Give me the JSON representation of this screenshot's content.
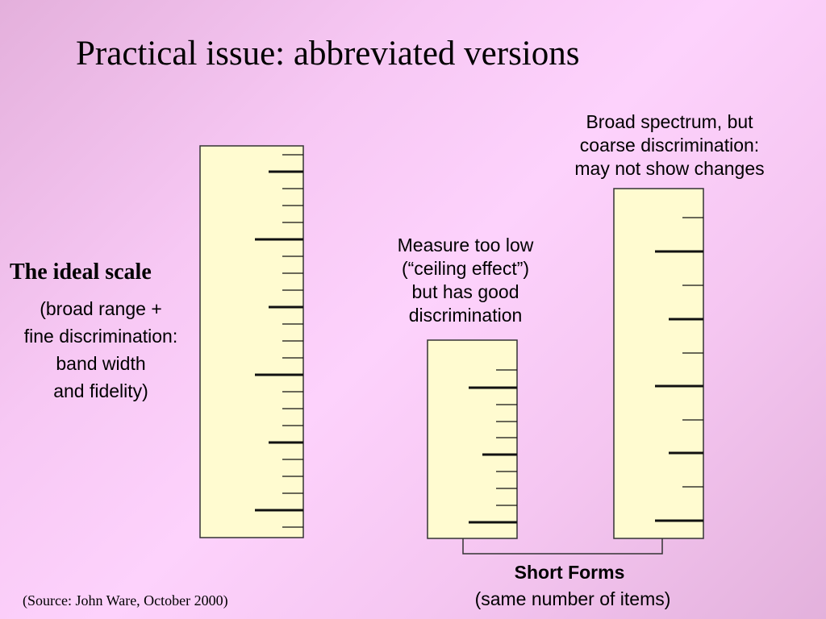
{
  "title": "Practical issue: abbreviated versions",
  "ideal": {
    "heading": "The ideal scale",
    "description_lines": [
      "(broad range +",
      "fine discrimination:",
      "band width",
      "and fidelity)"
    ]
  },
  "short_low": {
    "note_lines": [
      "Measure too low",
      "(“ceiling effect”)",
      "but has good",
      "discrimination"
    ]
  },
  "short_broad": {
    "note_lines": [
      "Broad spectrum, but",
      "coarse discrimination:",
      "may not show changes"
    ]
  },
  "short_forms": {
    "title": "Short Forms",
    "subtitle": "(same number of items)"
  },
  "source": "(Source: John Ware, October 2000)",
  "colors": {
    "scale_fill": "#fffbd0",
    "scale_stroke": "#333333",
    "tick": "#111111",
    "background": "#f7c8f4"
  }
}
